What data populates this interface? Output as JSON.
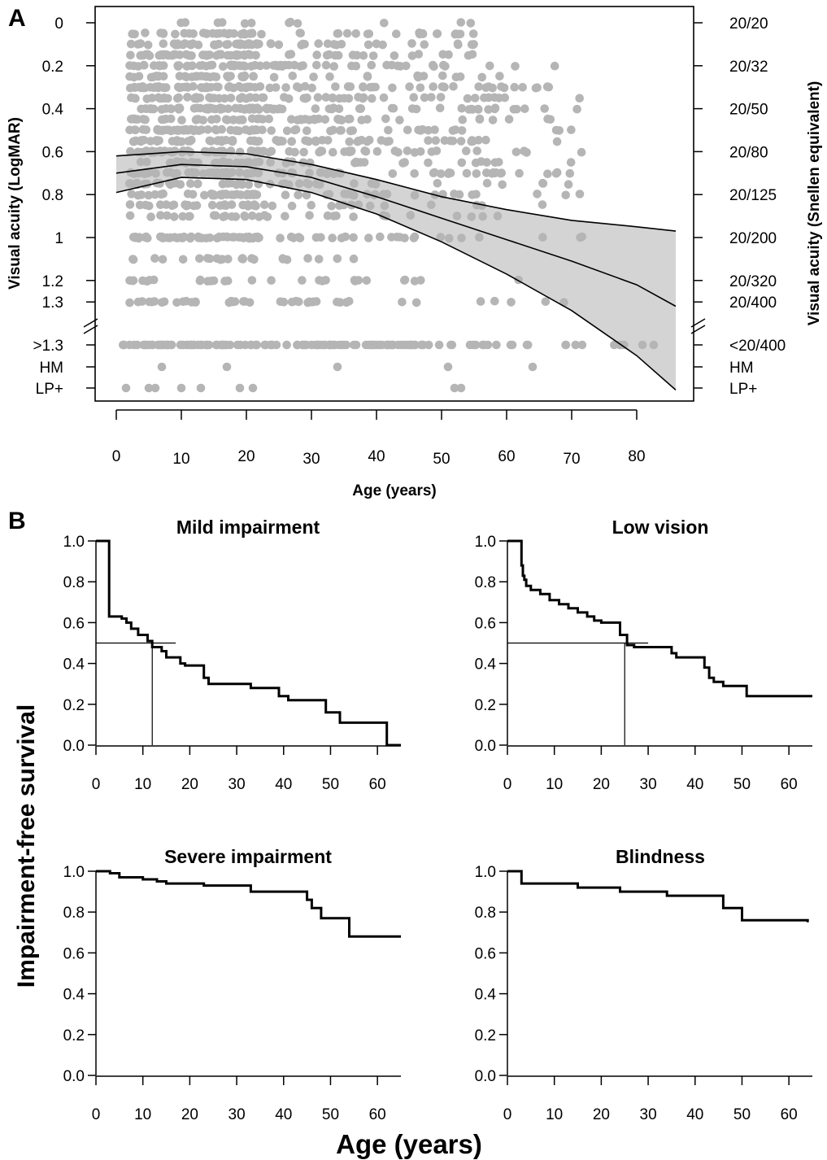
{
  "panel_labels": {
    "a": "A",
    "b": "B"
  },
  "chart_data": [
    {
      "id": "A",
      "type": "scatter",
      "xlabel": "Age (years)",
      "ylabel_left": "Visual acuity (LogMAR)",
      "ylabel_right": "Visual acuity (Snellen equivalent)",
      "xlim": [
        -3,
        89
      ],
      "x_ticks": [
        0,
        10,
        20,
        30,
        40,
        50,
        60,
        70,
        80
      ],
      "y_ticks_left": [
        "0",
        "0.2",
        "0.4",
        "0.6",
        "0.8",
        "1",
        "1.2",
        "1.3",
        ">1.3",
        "HM",
        "LP+"
      ],
      "y_ticks_right": [
        "20/20",
        "20/32",
        "20/50",
        "20/80",
        "20/125",
        "20/200",
        "20/320",
        "20/400",
        "<20/400",
        "HM",
        "LP+"
      ],
      "y_categories_below_break": [
        ">1.3",
        "HM",
        "LP+"
      ],
      "axis_break": "between 1.3 and >1.3",
      "point_color": "#b5b5b5",
      "band_color": "#d4d4d4",
      "grid": false,
      "smooth_fit": {
        "x": [
          0,
          10,
          20,
          30,
          40,
          50,
          60,
          70,
          80,
          86
        ],
        "fit": [
          0.7,
          0.66,
          0.67,
          0.72,
          0.81,
          0.91,
          1.01,
          1.11,
          1.22,
          1.32
        ],
        "lower": [
          0.62,
          0.6,
          0.61,
          0.66,
          0.73,
          0.81,
          0.87,
          0.92,
          0.95,
          0.97
        ],
        "upper": [
          0.79,
          0.72,
          0.73,
          0.79,
          0.89,
          1.02,
          1.17,
          1.34,
          1.55,
          1.71
        ]
      },
      "points_note": "approximately 1,500 individual eyes (grey points)"
    },
    {
      "id": "B",
      "type": "line",
      "step": true,
      "ylabel": "Impairment-free survival",
      "xlabel": "Age (years)",
      "xlim": [
        0,
        65
      ],
      "ylim": [
        0,
        1
      ],
      "x_ticks": [
        0,
        10,
        20,
        30,
        40,
        50,
        60
      ],
      "y_ticks": [
        "0.0",
        "0.2",
        "0.4",
        "0.6",
        "0.8",
        "1.0"
      ],
      "panels": [
        {
          "title": "Mild impairment",
          "median_age": 12,
          "steps": [
            [
              0,
              1.0
            ],
            [
              2.8,
              0.63
            ],
            [
              5.5,
              0.62
            ],
            [
              6.5,
              0.6
            ],
            [
              7.5,
              0.57
            ],
            [
              9,
              0.54
            ],
            [
              11,
              0.51
            ],
            [
              12,
              0.48
            ],
            [
              14,
              0.46
            ],
            [
              15,
              0.43
            ],
            [
              18,
              0.4
            ],
            [
              19,
              0.39
            ],
            [
              23,
              0.33
            ],
            [
              24,
              0.3
            ],
            [
              33,
              0.28
            ],
            [
              39,
              0.24
            ],
            [
              41,
              0.22
            ],
            [
              49,
              0.16
            ],
            [
              52,
              0.11
            ],
            [
              62,
              0.0
            ],
            [
              65,
              0.0
            ]
          ]
        },
        {
          "title": "Low vision",
          "median_age": 25,
          "steps": [
            [
              0,
              1.0
            ],
            [
              3,
              0.88
            ],
            [
              3.3,
              0.83
            ],
            [
              3.6,
              0.81
            ],
            [
              4,
              0.78
            ],
            [
              5,
              0.76
            ],
            [
              7,
              0.74
            ],
            [
              9,
              0.71
            ],
            [
              11,
              0.69
            ],
            [
              13,
              0.67
            ],
            [
              15,
              0.65
            ],
            [
              17,
              0.63
            ],
            [
              18.5,
              0.61
            ],
            [
              20,
              0.6
            ],
            [
              24,
              0.54
            ],
            [
              25.5,
              0.49
            ],
            [
              27,
              0.48
            ],
            [
              31,
              0.48
            ],
            [
              35,
              0.45
            ],
            [
              36,
              0.43
            ],
            [
              38,
              0.43
            ],
            [
              42,
              0.38
            ],
            [
              43,
              0.33
            ],
            [
              44,
              0.31
            ],
            [
              46,
              0.29
            ],
            [
              51,
              0.24
            ],
            [
              65,
              0.24
            ]
          ]
        },
        {
          "title": "Severe impairment",
          "median_age": null,
          "steps": [
            [
              0,
              1.0
            ],
            [
              3,
              0.99
            ],
            [
              5,
              0.97
            ],
            [
              10,
              0.96
            ],
            [
              13,
              0.95
            ],
            [
              15,
              0.94
            ],
            [
              23,
              0.93
            ],
            [
              33,
              0.9
            ],
            [
              45,
              0.86
            ],
            [
              46,
              0.82
            ],
            [
              48,
              0.77
            ],
            [
              54,
              0.68
            ],
            [
              65,
              0.68
            ]
          ]
        },
        {
          "title": "Blindness",
          "median_age": null,
          "steps": [
            [
              0,
              1.0
            ],
            [
              3,
              0.94
            ],
            [
              15,
              0.92
            ],
            [
              24,
              0.9
            ],
            [
              34,
              0.88
            ],
            [
              46,
              0.82
            ],
            [
              50,
              0.76
            ],
            [
              64,
              0.75
            ]
          ]
        }
      ]
    }
  ]
}
